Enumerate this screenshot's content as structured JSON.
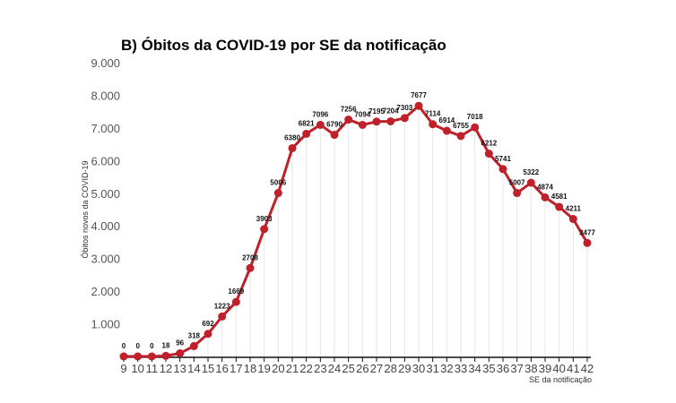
{
  "chart_data": {
    "type": "line",
    "title": "B) Óbitos da COVID-19 por SE da notificação",
    "xlabel": "SE da notificação",
    "ylabel": "Óbitos novos da COVID-19",
    "x": [
      9,
      10,
      11,
      12,
      13,
      14,
      15,
      16,
      17,
      18,
      19,
      20,
      21,
      22,
      23,
      24,
      25,
      26,
      27,
      28,
      29,
      30,
      31,
      32,
      33,
      34,
      35,
      36,
      37,
      38,
      39,
      40,
      41,
      42
    ],
    "values": [
      0,
      0,
      0,
      18,
      96,
      318,
      692,
      1223,
      1669,
      2708,
      3903,
      5006,
      6380,
      6821,
      7096,
      6790,
      7256,
      7094,
      7195,
      7204,
      7303,
      7677,
      7114,
      6914,
      6755,
      7018,
      6212,
      5741,
      5007,
      5322,
      4874,
      4581,
      4211,
      3477
    ],
    "ylim": [
      0,
      9000
    ],
    "yticks": [
      "1.000",
      "2.000",
      "3.000",
      "4.000",
      "5.000",
      "6.000",
      "7.000",
      "8.000",
      "9.000"
    ],
    "ytick_values": [
      1000,
      2000,
      3000,
      4000,
      5000,
      6000,
      7000,
      8000,
      9000
    ],
    "grid": "vertical only",
    "legend": "none",
    "line_color": "#c0202a"
  }
}
